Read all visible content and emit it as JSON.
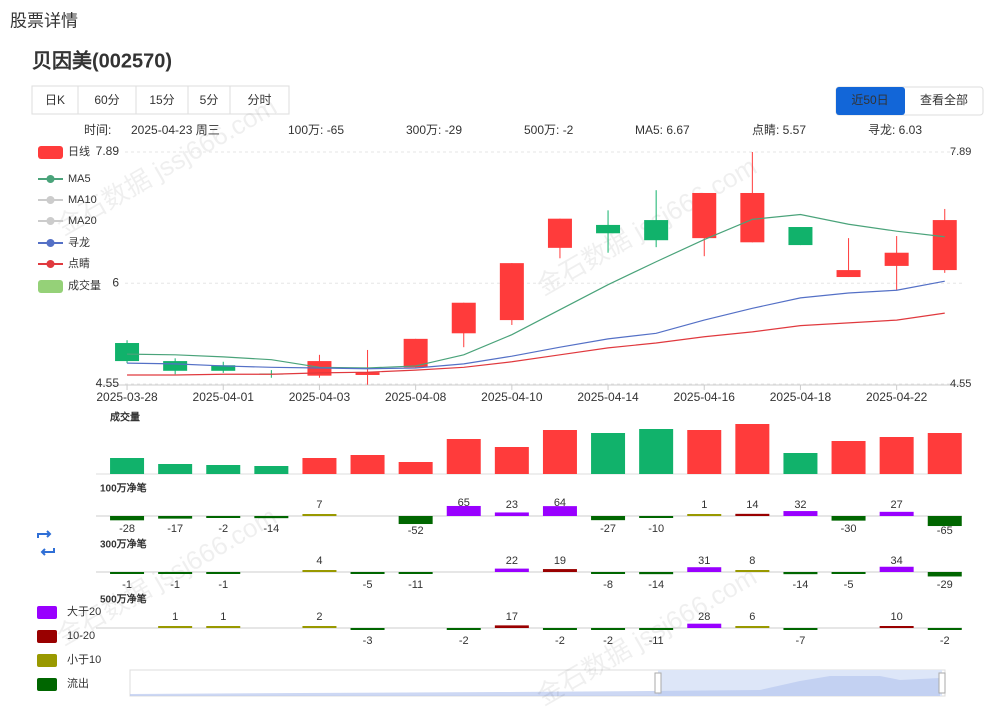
{
  "header": {
    "title": "股票详情",
    "stock": "贝因美(002570)"
  },
  "tabs": [
    "日K",
    "60分",
    "15分",
    "5分",
    "分时"
  ],
  "range_buttons": [
    "近50日",
    "查看全部"
  ],
  "info": [
    {
      "text": "时间:",
      "color": "#888888"
    },
    {
      "text": "2025-04-23 周三",
      "color": "#888888"
    },
    {
      "text": "100万: -65",
      "color": "#2e6b12"
    },
    {
      "text": "300万: -29",
      "color": "#2e6b12"
    },
    {
      "text": "500万: -2",
      "color": "#1e8c1e"
    },
    {
      "text": "MA5: 6.67",
      "color": "#3aa57e"
    },
    {
      "text": "点睛: 5.57",
      "color": "#e0393e"
    },
    {
      "text": "寻龙: 6.03",
      "color": "#4a6a9a"
    }
  ],
  "watermark": "金石数据 jssj666.com",
  "net_legend": [
    {
      "label": "大于20",
      "color": "#9900ff"
    },
    {
      "label": "10-20",
      "color": "#990000"
    },
    {
      "label": "小于10",
      "color": "#999900"
    },
    {
      "label": "流出",
      "color": "#006600"
    }
  ],
  "chart_data": [
    {
      "type": "candlestick",
      "name": "日线",
      "categories": [
        "2025-03-28",
        null,
        "2025-04-01",
        null,
        "2025-04-03",
        null,
        "2025-04-08",
        null,
        "2025-04-10",
        null,
        "2025-04-14",
        null,
        "2025-04-16",
        null,
        "2025-04-18",
        null,
        "2025-04-22",
        null
      ],
      "open": [
        5.14,
        4.88,
        4.82,
        4.7,
        4.67,
        4.68,
        4.79,
        5.28,
        5.47,
        6.51,
        6.84,
        6.91,
        6.65,
        6.59,
        6.81,
        6.09,
        6.25,
        6.19
      ],
      "high": [
        5.18,
        4.92,
        4.87,
        4.75,
        4.97,
        5.04,
        5.2,
        5.72,
        6.29,
        6.93,
        7.05,
        7.34,
        7.3,
        7.89,
        6.81,
        6.65,
        6.68,
        7.07
      ],
      "low": [
        4.85,
        4.69,
        4.71,
        4.64,
        4.64,
        4.54,
        4.79,
        5.08,
        5.4,
        6.36,
        6.44,
        6.52,
        6.39,
        6.59,
        6.55,
        6.09,
        5.9,
        6.15
      ],
      "close": [
        4.88,
        4.74,
        4.74,
        4.69,
        4.88,
        4.72,
        5.2,
        5.72,
        6.29,
        6.93,
        6.72,
        6.62,
        7.3,
        7.3,
        6.55,
        6.19,
        6.44,
        6.91
      ],
      "up_color": "#ff3b3b",
      "down_color": "#11b26b",
      "ylim": [
        4.55,
        7.89
      ],
      "yticks": [
        4.55,
        6,
        7.89
      ],
      "grid": true,
      "series": [
        {
          "name": "MA5",
          "color": "#4aa37a",
          "values": [
            4.98,
            4.97,
            4.94,
            4.9,
            4.79,
            4.78,
            4.81,
            4.97,
            5.26,
            5.62,
            5.98,
            6.31,
            6.63,
            6.92,
            6.99,
            6.85,
            6.75,
            6.67
          ]
        },
        {
          "name": "MA10",
          "color": "#cccccc",
          "visible": false
        },
        {
          "name": "MA20",
          "color": "#cccccc",
          "visible": false
        },
        {
          "name": "寻龙",
          "color": "#5470c6",
          "values": [
            4.85,
            4.84,
            4.81,
            4.79,
            4.78,
            4.77,
            4.78,
            4.84,
            4.95,
            5.08,
            5.2,
            5.28,
            5.47,
            5.64,
            5.79,
            5.86,
            5.9,
            6.03
          ]
        },
        {
          "name": "点睛",
          "color": "#e0393e",
          "values": [
            4.68,
            4.68,
            4.69,
            4.69,
            4.71,
            4.72,
            4.75,
            4.79,
            4.87,
            4.97,
            5.07,
            5.14,
            5.23,
            5.3,
            5.39,
            5.43,
            5.47,
            5.57
          ]
        }
      ]
    },
    {
      "type": "bar",
      "title": "成交量",
      "color": "#95d178",
      "values": [
        16,
        10,
        9,
        8,
        16,
        19,
        12,
        35,
        27,
        44,
        41,
        45,
        44,
        50,
        21,
        33,
        37,
        41
      ],
      "ylim": [
        0,
        50
      ]
    },
    {
      "type": "bar",
      "title": "100万净笔",
      "values": [
        -28,
        -17,
        -2,
        -14,
        7,
        null,
        -52,
        65,
        23,
        64,
        -27,
        -10,
        1,
        14,
        32,
        -30,
        27,
        -65
      ],
      "ylim": [
        -70,
        70
      ]
    },
    {
      "type": "bar",
      "title": "300万净笔",
      "values": [
        -1,
        -1,
        -1,
        null,
        4,
        -5,
        -11,
        null,
        22,
        19,
        -8,
        -14,
        31,
        8,
        -14,
        -5,
        34,
        -29
      ],
      "ylim": [
        -70,
        70
      ]
    },
    {
      "type": "bar",
      "title": "500万净笔",
      "values": [
        null,
        1,
        1,
        null,
        2,
        -3,
        null,
        -2,
        17,
        -2,
        -2,
        -11,
        28,
        6,
        -7,
        null,
        10,
        -2
      ],
      "ylim": [
        -70,
        70
      ]
    }
  ]
}
